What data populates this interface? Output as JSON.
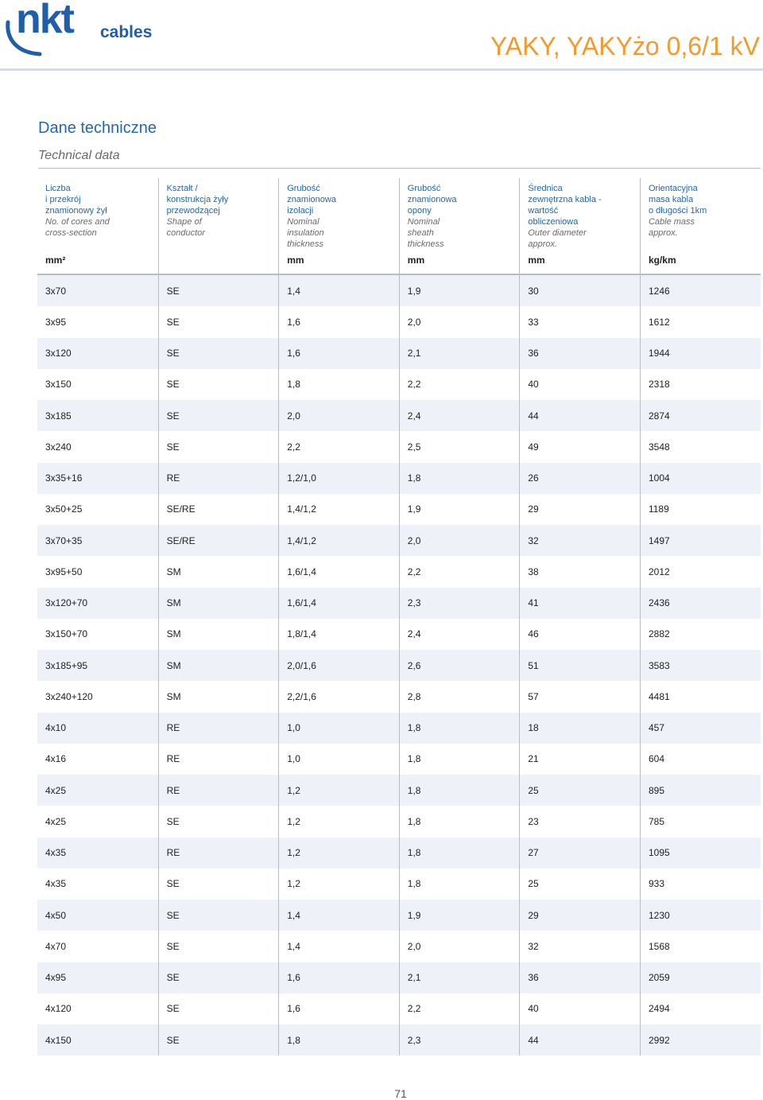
{
  "brand": {
    "logo_main": "nkt",
    "logo_sub": "cables"
  },
  "document": {
    "title": "YAKY, YAKYżo 0,6/1 kV",
    "page_number": "71"
  },
  "section": {
    "title_pl": "Dane techniczne",
    "title_en": "Technical data"
  },
  "table": {
    "columns": [
      {
        "pl": [
          "Liczba",
          "i przekrój",
          "znamionowy żył"
        ],
        "en": [
          "No. of cores and",
          "cross-section"
        ],
        "unit": "mm²"
      },
      {
        "pl": [
          "Kształt /",
          "konstrukcja żyły",
          "przewodzącej"
        ],
        "en": [
          "Shape of",
          "conductor"
        ],
        "unit": ""
      },
      {
        "pl": [
          "Grubość",
          "znamionowa",
          "izolacji"
        ],
        "en": [
          "Nominal",
          "insulation",
          "thickness"
        ],
        "unit": "mm"
      },
      {
        "pl": [
          "Grubość",
          "znamionowa",
          "opony"
        ],
        "en": [
          "Nominal",
          "sheath",
          "thickness"
        ],
        "unit": "mm"
      },
      {
        "pl": [
          "Średnica",
          "zewnętrzna kabla -",
          "wartość",
          "obliczeniowa"
        ],
        "en": [
          "Outer diameter",
          "approx."
        ],
        "unit": "mm"
      },
      {
        "pl": [
          "Orientacyjna",
          "masa kabla",
          "o długości 1km"
        ],
        "en": [
          "Cable mass",
          "approx."
        ],
        "unit": "kg/km"
      }
    ],
    "rows": [
      [
        "3x70",
        "SE",
        "1,4",
        "1,9",
        "30",
        "1246"
      ],
      [
        "3x95",
        "SE",
        "1,6",
        "2,0",
        "33",
        "1612"
      ],
      [
        "3x120",
        "SE",
        "1,6",
        "2,1",
        "36",
        "1944"
      ],
      [
        "3x150",
        "SE",
        "1,8",
        "2,2",
        "40",
        "2318"
      ],
      [
        "3x185",
        "SE",
        "2,0",
        "2,4",
        "44",
        "2874"
      ],
      [
        "3x240",
        "SE",
        "2,2",
        "2,5",
        "49",
        "3548"
      ],
      [
        "3x35+16",
        "RE",
        "1,2/1,0",
        "1,8",
        "26",
        "1004"
      ],
      [
        "3x50+25",
        "SE/RE",
        "1,4/1,2",
        "1,9",
        "29",
        "1189"
      ],
      [
        "3x70+35",
        "SE/RE",
        "1,4/1,2",
        "2,0",
        "32",
        "1497"
      ],
      [
        "3x95+50",
        "SM",
        "1,6/1,4",
        "2,2",
        "38",
        "2012"
      ],
      [
        "3x120+70",
        "SM",
        "1,6/1,4",
        "2,3",
        "41",
        "2436"
      ],
      [
        "3x150+70",
        "SM",
        "1,8/1,4",
        "2,4",
        "46",
        "2882"
      ],
      [
        "3x185+95",
        "SM",
        "2,0/1,6",
        "2,6",
        "51",
        "3583"
      ],
      [
        "3x240+120",
        "SM",
        "2,2/1,6",
        "2,8",
        "57",
        "4481"
      ],
      [
        "4x10",
        "RE",
        "1,0",
        "1,8",
        "18",
        "457"
      ],
      [
        "4x16",
        "RE",
        "1,0",
        "1,8",
        "21",
        "604"
      ],
      [
        "4x25",
        "RE",
        "1,2",
        "1,8",
        "25",
        "895"
      ],
      [
        "4x25",
        "SE",
        "1,2",
        "1,8",
        "23",
        "785"
      ],
      [
        "4x35",
        "RE",
        "1,2",
        "1,8",
        "27",
        "1095"
      ],
      [
        "4x35",
        "SE",
        "1,2",
        "1,8",
        "25",
        "933"
      ],
      [
        "4x50",
        "SE",
        "1,4",
        "1,9",
        "29",
        "1230"
      ],
      [
        "4x70",
        "SE",
        "1,4",
        "2,0",
        "32",
        "1568"
      ],
      [
        "4x95",
        "SE",
        "1,6",
        "2,1",
        "36",
        "2059"
      ],
      [
        "4x120",
        "SE",
        "1,6",
        "2,2",
        "40",
        "2494"
      ],
      [
        "4x150",
        "SE",
        "1,8",
        "2,3",
        "44",
        "2992"
      ]
    ]
  }
}
